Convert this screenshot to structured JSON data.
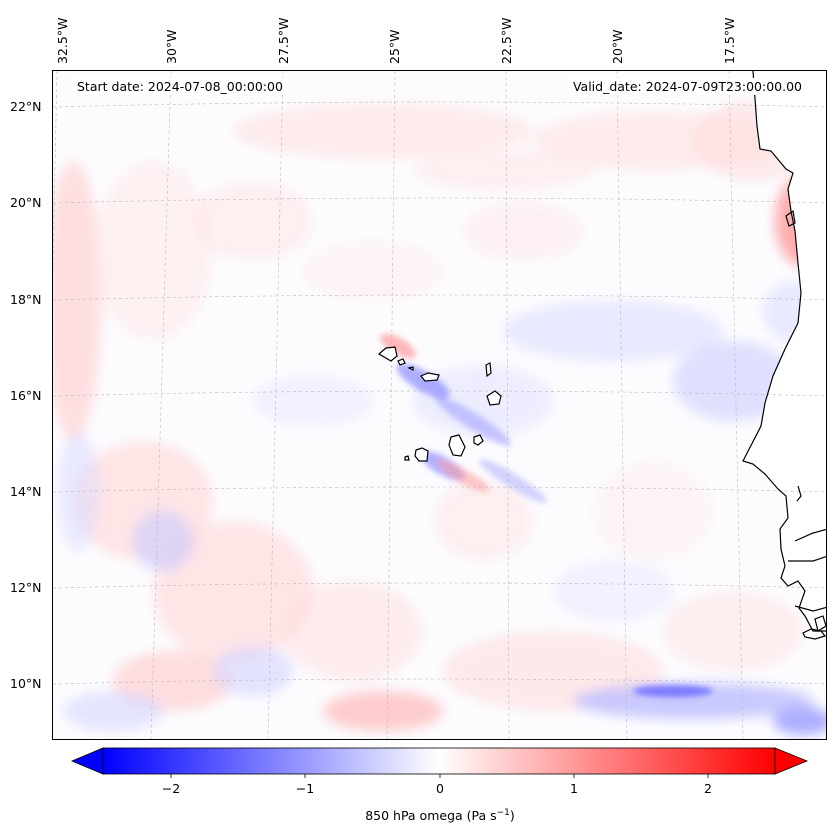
{
  "header": {
    "start_date": "Start date: 2024-07-08_00:00:00",
    "valid_date": "Valid_date: 2024-07-09T23:00:00.00"
  },
  "axes": {
    "lon_labels": [
      "32.5°W",
      "30°W",
      "27.5°W",
      "25°W",
      "22.5°W",
      "20°W",
      "17.5°W"
    ],
    "lat_labels": [
      "22°N",
      "20°N",
      "18°N",
      "16°N",
      "14°N",
      "12°N",
      "10°N"
    ]
  },
  "colorbar": {
    "ticks": [
      "−2",
      "−1",
      "0",
      "1",
      "2"
    ],
    "label_main": "850 hPa omega (Pa s",
    "label_exp": "−1",
    "label_close": ")",
    "colors": {
      "min": "#0000ff",
      "zero": "#ffffff",
      "max": "#ff0000"
    }
  },
  "map": {
    "land_color": "#ffffff",
    "coast_color": "#000000",
    "grid_color": "#b8b8b8"
  }
}
